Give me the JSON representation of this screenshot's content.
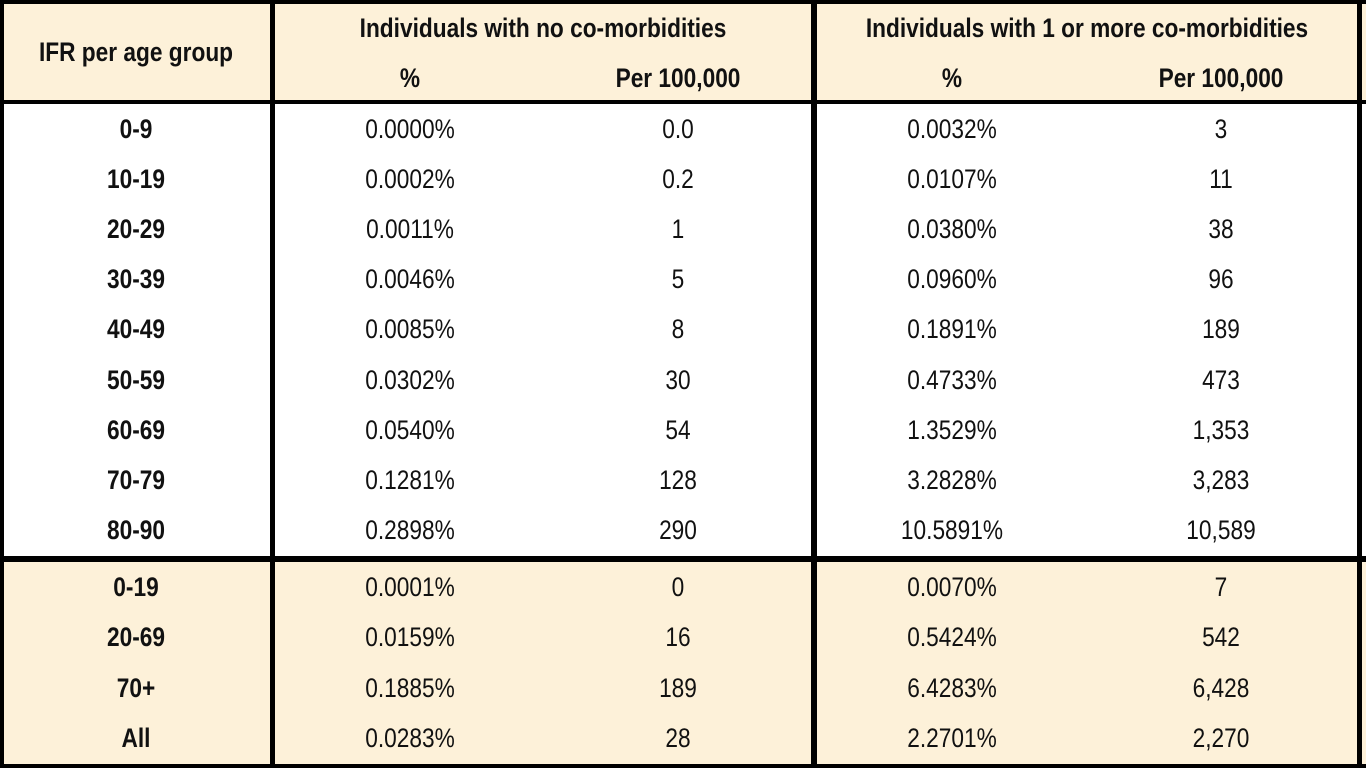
{
  "chart_data": {
    "type": "table",
    "corner_header": "IFR per age group",
    "group_headers": [
      "Individuals with no co-morbidities",
      "Individuals with 1 or more co-morbidities"
    ],
    "sub_headers": [
      "%",
      "Per 100,000",
      "%",
      "Per 100,000"
    ],
    "rows": [
      {
        "age": "0-9",
        "no_pct": "0.0000%",
        "no_per": "0.0",
        "co_pct": "0.0032%",
        "co_per": "3"
      },
      {
        "age": "10-19",
        "no_pct": "0.0002%",
        "no_per": "0.2",
        "co_pct": "0.0107%",
        "co_per": "11"
      },
      {
        "age": "20-29",
        "no_pct": "0.0011%",
        "no_per": "1",
        "co_pct": "0.0380%",
        "co_per": "38"
      },
      {
        "age": "30-39",
        "no_pct": "0.0046%",
        "no_per": "5",
        "co_pct": "0.0960%",
        "co_per": "96"
      },
      {
        "age": "40-49",
        "no_pct": "0.0085%",
        "no_per": "8",
        "co_pct": "0.1891%",
        "co_per": "189"
      },
      {
        "age": "50-59",
        "no_pct": "0.0302%",
        "no_per": "30",
        "co_pct": "0.4733%",
        "co_per": "473"
      },
      {
        "age": "60-69",
        "no_pct": "0.0540%",
        "no_per": "54",
        "co_pct": "1.3529%",
        "co_per": "1,353"
      },
      {
        "age": "70-79",
        "no_pct": "0.1281%",
        "no_per": "128",
        "co_pct": "3.2828%",
        "co_per": "3,283"
      },
      {
        "age": "80-90",
        "no_pct": "0.2898%",
        "no_per": "290",
        "co_pct": "10.5891%",
        "co_per": "10,589"
      }
    ],
    "summary_rows": [
      {
        "age": "0-19",
        "no_pct": "0.0001%",
        "no_per": "0",
        "co_pct": "0.0070%",
        "co_per": "7"
      },
      {
        "age": "20-69",
        "no_pct": "0.0159%",
        "no_per": "16",
        "co_pct": "0.5424%",
        "co_per": "542"
      },
      {
        "age": "70+",
        "no_pct": "0.1885%",
        "no_per": "189",
        "co_pct": "6.4283%",
        "co_per": "6,428"
      },
      {
        "age": "All",
        "no_pct": "0.0283%",
        "no_per": "28",
        "co_pct": "2.2701%",
        "co_per": "2,270"
      }
    ],
    "colors": {
      "header_fill": "#fdf1d9",
      "body_fill": "#ffffff",
      "rule": "#000000"
    }
  }
}
